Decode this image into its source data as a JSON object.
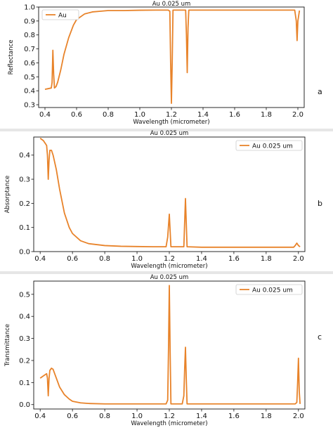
{
  "chart_data": [
    {
      "type": "line",
      "panel_label": "a",
      "title": "Au 0.025 um",
      "xlabel": "Wavelength (micrometer)",
      "ylabel": "Reflectance",
      "xlim": [
        0.36,
        2.04
      ],
      "ylim": [
        0.28,
        1.0
      ],
      "xticks": [
        "0.4",
        "0.6",
        "0.8",
        "1.0",
        "1.2",
        "1.4",
        "1.6",
        "1.8",
        "2.0"
      ],
      "yticks": [
        "0.3",
        "0.4",
        "0.5",
        "0.6",
        "0.7",
        "0.8",
        "0.9",
        "1.0"
      ],
      "legend_position": "top-left",
      "grid": false,
      "series": [
        {
          "name": "Au",
          "color": "#E8832A",
          "x": [
            0.4,
            0.44,
            0.445,
            0.45,
            0.455,
            0.46,
            0.47,
            0.48,
            0.5,
            0.52,
            0.55,
            0.58,
            0.6,
            0.65,
            0.7,
            0.75,
            0.8,
            0.9,
            1.0,
            1.1,
            1.18,
            1.19,
            1.195,
            1.2,
            1.205,
            1.21,
            1.29,
            1.295,
            1.3,
            1.305,
            1.31,
            1.4,
            1.6,
            1.8,
            1.98,
            1.99,
            1.995,
            2.0,
            2.01
          ],
          "y": [
            0.41,
            0.42,
            0.46,
            0.69,
            0.52,
            0.42,
            0.43,
            0.46,
            0.55,
            0.66,
            0.78,
            0.87,
            0.91,
            0.95,
            0.965,
            0.97,
            0.975,
            0.975,
            0.977,
            0.978,
            0.978,
            0.97,
            0.6,
            0.31,
            0.6,
            0.978,
            0.978,
            0.8,
            0.53,
            0.85,
            0.978,
            0.978,
            0.978,
            0.978,
            0.978,
            0.9,
            0.76,
            0.9,
            0.975
          ]
        }
      ]
    },
    {
      "type": "line",
      "panel_label": "b",
      "title": "Au 0.025 um",
      "xlabel": "Wavelength (micrometer)",
      "ylabel": "Absorptance",
      "xlim": [
        0.36,
        2.04
      ],
      "ylim": [
        0.0,
        0.475
      ],
      "xticks": [
        "0.4",
        "0.6",
        "0.8",
        "1.0",
        "1.2",
        "1.4",
        "1.6",
        "1.8",
        "2.0"
      ],
      "yticks": [
        "0.0",
        "0.1",
        "0.2",
        "0.3",
        "0.4"
      ],
      "legend_position": "top-right",
      "grid": false,
      "series": [
        {
          "name": "Au 0.025 um",
          "color": "#E8832A",
          "x": [
            0.4,
            0.42,
            0.44,
            0.445,
            0.45,
            0.455,
            0.46,
            0.47,
            0.48,
            0.5,
            0.52,
            0.55,
            0.58,
            0.6,
            0.65,
            0.7,
            0.8,
            0.9,
            1.0,
            1.1,
            1.18,
            1.19,
            1.2,
            1.21,
            1.29,
            1.3,
            1.31,
            1.4,
            1.6,
            1.8,
            1.97,
            1.98,
            1.99,
            2.0,
            2.01
          ],
          "y": [
            0.47,
            0.46,
            0.44,
            0.4,
            0.3,
            0.38,
            0.42,
            0.42,
            0.4,
            0.34,
            0.26,
            0.16,
            0.1,
            0.075,
            0.045,
            0.033,
            0.025,
            0.022,
            0.021,
            0.02,
            0.02,
            0.06,
            0.155,
            0.02,
            0.02,
            0.22,
            0.02,
            0.018,
            0.018,
            0.018,
            0.018,
            0.025,
            0.035,
            0.025,
            0.02
          ]
        }
      ]
    },
    {
      "type": "line",
      "panel_label": "c",
      "title": "Au 0.025 um",
      "xlabel": "Wavelength (micrometer)",
      "ylabel": "Transmittance",
      "xlim": [
        0.36,
        2.04
      ],
      "ylim": [
        -0.02,
        0.56
      ],
      "xticks": [
        "0.4",
        "0.6",
        "0.8",
        "1.0",
        "1.2",
        "1.4",
        "1.6",
        "1.8",
        "2.0"
      ],
      "yticks": [
        "0.0",
        "0.1",
        "0.2",
        "0.3",
        "0.4",
        "0.5"
      ],
      "legend_position": "top-right",
      "grid": false,
      "series": [
        {
          "name": "Au 0.025 um",
          "color": "#E8832A",
          "x": [
            0.4,
            0.42,
            0.44,
            0.445,
            0.45,
            0.455,
            0.46,
            0.47,
            0.48,
            0.5,
            0.52,
            0.55,
            0.58,
            0.6,
            0.65,
            0.7,
            0.8,
            0.9,
            1.0,
            1.1,
            1.18,
            1.19,
            1.195,
            1.2,
            1.205,
            1.21,
            1.28,
            1.29,
            1.295,
            1.3,
            1.305,
            1.31,
            1.4,
            1.6,
            1.8,
            1.98,
            1.99,
            1.995,
            2.0,
            2.005,
            2.01
          ],
          "y": [
            0.12,
            0.13,
            0.14,
            0.12,
            0.04,
            0.12,
            0.155,
            0.165,
            0.16,
            0.12,
            0.08,
            0.045,
            0.025,
            0.015,
            0.008,
            0.005,
            0.003,
            0.003,
            0.003,
            0.003,
            0.003,
            0.02,
            0.25,
            0.54,
            0.25,
            0.003,
            0.003,
            0.04,
            0.16,
            0.26,
            0.12,
            0.003,
            0.003,
            0.003,
            0.003,
            0.003,
            0.01,
            0.1,
            0.21,
            0.06,
            0.003
          ]
        }
      ]
    }
  ]
}
